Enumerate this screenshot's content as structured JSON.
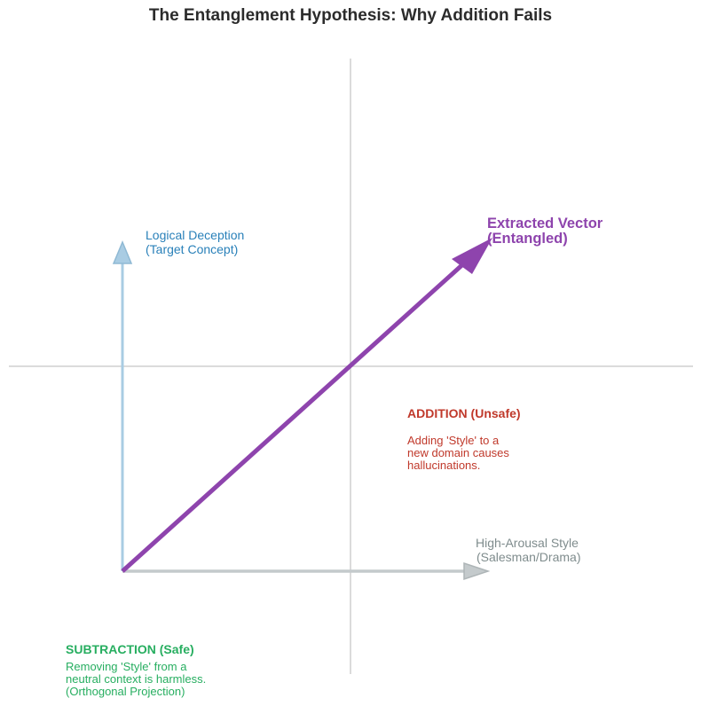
{
  "title": "The Entanglement Hypothesis: Why Addition Fails",
  "vectors": {
    "target": {
      "line1": "Logical Deception",
      "line2": "(Target Concept)",
      "color": "#2980b9",
      "arrow_color": "#a9cce3"
    },
    "style": {
      "line1": "High-Arousal Style",
      "line2": "(Salesman/Drama)",
      "color": "#7f8c8d",
      "arrow_color": "#c4cacc"
    },
    "extracted": {
      "line1": "Extracted Vector",
      "line2": "(Entangled)",
      "color": "#8e44ad"
    }
  },
  "annotations": {
    "addition": {
      "heading": "ADDITION (Unsafe)",
      "lines": [
        "Adding 'Style' to a",
        "new domain causes",
        "hallucinations."
      ],
      "color": "#c0392b"
    },
    "subtraction": {
      "heading": "SUBTRACTION (Safe)",
      "lines": [
        "Removing 'Style' from a",
        "neutral context is harmless.",
        "(Orthogonal Projection)"
      ],
      "color": "#27ae60"
    }
  }
}
